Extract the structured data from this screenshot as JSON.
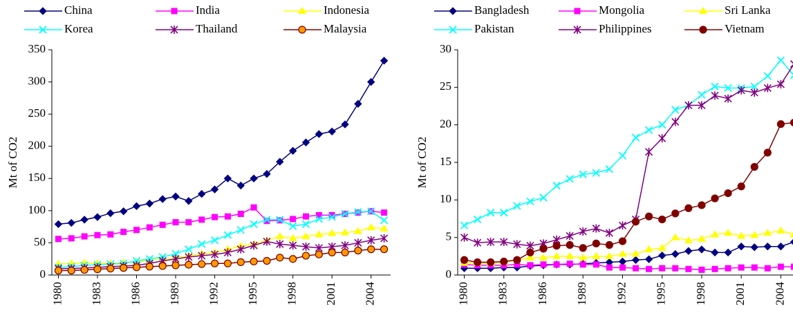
{
  "chart_data": [
    {
      "type": "line",
      "y_label": "Mt of CO2",
      "x": [
        1980,
        1981,
        1982,
        1983,
        1984,
        1985,
        1986,
        1987,
        1988,
        1989,
        1990,
        1991,
        1992,
        1993,
        1994,
        1995,
        1996,
        1997,
        1998,
        1999,
        2000,
        2001,
        2002,
        2003,
        2004,
        2005
      ],
      "xlim": [
        1979.5,
        2005.5
      ],
      "xticks": [
        1980,
        1983,
        1986,
        1989,
        1992,
        1995,
        1998,
        2001,
        2004
      ],
      "ylim": [
        0,
        350
      ],
      "yticks": [
        0,
        50,
        100,
        150,
        200,
        250,
        300,
        350
      ],
      "series": [
        {
          "name": "China",
          "color": "#000080",
          "marker": "diamond",
          "values": [
            79,
            81,
            86,
            90,
            96,
            99,
            107,
            111,
            118,
            122,
            115,
            126,
            133,
            150,
            139,
            150,
            157,
            176,
            193,
            206,
            219,
            223,
            234,
            266,
            300,
            333
          ]
        },
        {
          "name": "India",
          "color": "#ff00ff",
          "marker": "square",
          "values": [
            56,
            57,
            60,
            62,
            63,
            67,
            70,
            74,
            78,
            82,
            82,
            86,
            90,
            91,
            95,
            105,
            84,
            85,
            87,
            91,
            93,
            93,
            95,
            97,
            99,
            97
          ]
        },
        {
          "name": "Indonesia",
          "color": "#ffff00",
          "marker": "triangle",
          "values": [
            17,
            18,
            19,
            18,
            18,
            19,
            20,
            23,
            25,
            27,
            30,
            33,
            35,
            40,
            45,
            48,
            54,
            60,
            57,
            60,
            63,
            65,
            66,
            68,
            74,
            72
          ]
        },
        {
          "name": "Korea",
          "color": "#00ffff",
          "marker": "x",
          "values": [
            12,
            13,
            15,
            16,
            17,
            18,
            22,
            25,
            28,
            33,
            40,
            48,
            54,
            62,
            70,
            79,
            86,
            86,
            76,
            79,
            87,
            90,
            95,
            98,
            99,
            85
          ]
        },
        {
          "name": "Thailand",
          "color": "#800080",
          "marker": "star",
          "values": [
            10,
            10,
            11,
            12,
            13,
            14,
            15,
            18,
            22,
            25,
            28,
            30,
            32,
            35,
            40,
            46,
            52,
            48,
            46,
            44,
            42,
            44,
            46,
            50,
            54,
            57
          ]
        },
        {
          "name": "Malaysia",
          "color": "#800000",
          "fill": "#ff9900",
          "marker": "circle",
          "values": [
            7,
            7,
            8,
            9,
            10,
            11,
            12,
            13,
            14,
            15,
            16,
            17,
            18,
            18,
            20,
            21,
            22,
            27,
            25,
            30,
            32,
            35,
            35,
            38,
            40,
            40
          ]
        }
      ]
    },
    {
      "type": "line",
      "y_label": "Mt of CO2",
      "x": [
        1980,
        1981,
        1982,
        1983,
        1984,
        1985,
        1986,
        1987,
        1988,
        1989,
        1990,
        1991,
        1992,
        1993,
        1994,
        1995,
        1996,
        1997,
        1998,
        1999,
        2000,
        2001,
        2002,
        2003,
        2004,
        2005
      ],
      "xlim": [
        1979.5,
        2005.5
      ],
      "xticks": [
        1980,
        1983,
        1986,
        1989,
        1992,
        1995,
        1998,
        2001,
        2004
      ],
      "ylim": [
        0,
        30
      ],
      "yticks": [
        0,
        5,
        10,
        15,
        20,
        25,
        30
      ],
      "series": [
        {
          "name": "Bangladesh",
          "color": "#000080",
          "marker": "diamond",
          "values": [
            0.9,
            0.9,
            0.9,
            1.0,
            1.0,
            1.2,
            1.3,
            1.4,
            1.4,
            1.5,
            1.6,
            1.7,
            1.8,
            2.0,
            2.1,
            2.6,
            2.8,
            3.2,
            3.4,
            3.0,
            3.0,
            3.8,
            3.7,
            3.8,
            3.8,
            4.4
          ]
        },
        {
          "name": "Mongolia",
          "color": "#ff00ff",
          "marker": "square",
          "values": [
            1.4,
            1.3,
            1.3,
            1.3,
            1.4,
            1.3,
            1.4,
            1.4,
            1.5,
            1.4,
            1.4,
            1.0,
            1.0,
            0.9,
            0.8,
            0.9,
            0.9,
            0.8,
            0.7,
            0.8,
            0.9,
            1.0,
            1.0,
            0.9,
            1.1,
            1.1
          ]
        },
        {
          "name": "Sri Lanka",
          "color": "#ffff00",
          "marker": "triangle",
          "values": [
            1.6,
            1.6,
            1.6,
            1.7,
            2.0,
            2.3,
            2.3,
            2.5,
            2.5,
            2.3,
            2.5,
            2.5,
            2.8,
            2.8,
            3.4,
            3.6,
            5.0,
            4.6,
            4.8,
            5.4,
            5.6,
            5.2,
            5.3,
            5.6,
            5.9,
            5.4
          ]
        },
        {
          "name": "Pakistan",
          "color": "#00ffff",
          "marker": "x",
          "values": [
            6.6,
            7.4,
            8.3,
            8.3,
            9.2,
            9.8,
            10.3,
            11.9,
            12.8,
            13.4,
            13.6,
            14.1,
            15.9,
            18.3,
            19.3,
            20.0,
            22.0,
            22.6,
            24.0,
            25.1,
            24.9,
            24.9,
            25.1,
            26.5,
            28.6,
            26.6
          ]
        },
        {
          "name": "Philippines",
          "color": "#800080",
          "marker": "star",
          "values": [
            5.0,
            4.3,
            4.4,
            4.4,
            4.1,
            3.9,
            4.2,
            4.7,
            5.2,
            5.8,
            6.2,
            5.6,
            6.6,
            7.4,
            16.4,
            18.2,
            20.4,
            22.6,
            22.6,
            23.9,
            23.5,
            24.6,
            24.3,
            24.9,
            25.4,
            28.1
          ]
        },
        {
          "name": "Vietnam",
          "color": "#800000",
          "fill": "#800000",
          "marker": "circle",
          "values": [
            2.0,
            1.7,
            1.7,
            1.8,
            2.0,
            3.0,
            3.5,
            3.9,
            4.0,
            3.6,
            4.2,
            4.0,
            4.5,
            7.1,
            7.8,
            7.4,
            8.2,
            8.9,
            9.3,
            10.2,
            10.9,
            11.8,
            14.4,
            16.3,
            20.1,
            20.3
          ]
        }
      ]
    }
  ]
}
